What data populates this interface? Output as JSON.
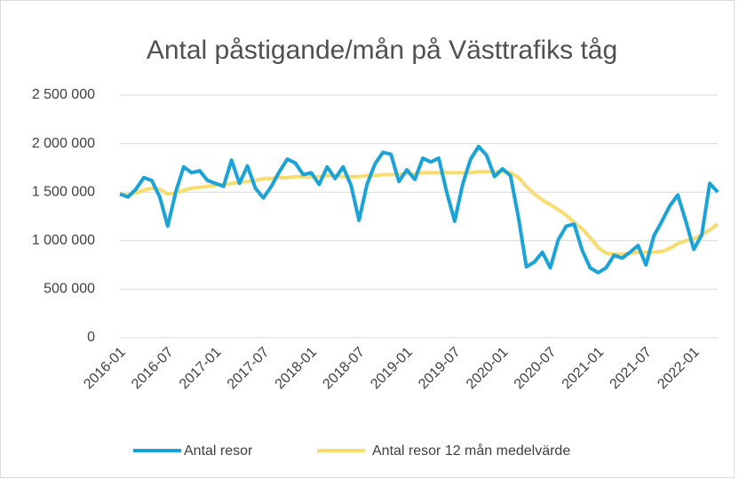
{
  "chart_data": {
    "type": "line",
    "title": "Antal påstigande/mån på Västtrafiks tåg",
    "categories": [
      "2016-01",
      null,
      null,
      null,
      null,
      null,
      "2016-07",
      null,
      null,
      null,
      null,
      null,
      "2017-01",
      null,
      null,
      null,
      null,
      null,
      "2017-07",
      null,
      null,
      null,
      null,
      null,
      "2018-01",
      null,
      null,
      null,
      null,
      null,
      "2018-07",
      null,
      null,
      null,
      null,
      null,
      "2019-01",
      null,
      null,
      null,
      null,
      null,
      "2019-07",
      null,
      null,
      null,
      null,
      null,
      "2020-01",
      null,
      null,
      null,
      null,
      null,
      "2020-07",
      null,
      null,
      null,
      null,
      null,
      "2021-01",
      null,
      null,
      null,
      null,
      null,
      "2021-07",
      null,
      null,
      null,
      null,
      null,
      "2022-01",
      null,
      null,
      null
    ],
    "series": [
      {
        "name": "Antal resor",
        "color": "#1aa3d9",
        "values": [
          1480000,
          1450000,
          1530000,
          1650000,
          1620000,
          1450000,
          1150000,
          1500000,
          1760000,
          1700000,
          1720000,
          1620000,
          1590000,
          1560000,
          1830000,
          1590000,
          1770000,
          1540000,
          1440000,
          1560000,
          1710000,
          1840000,
          1800000,
          1680000,
          1700000,
          1580000,
          1760000,
          1640000,
          1760000,
          1570000,
          1210000,
          1580000,
          1790000,
          1910000,
          1890000,
          1610000,
          1730000,
          1630000,
          1850000,
          1810000,
          1850000,
          1500000,
          1200000,
          1580000,
          1840000,
          1970000,
          1880000,
          1660000,
          1740000,
          1670000,
          1240000,
          730000,
          780000,
          880000,
          720000,
          1010000,
          1150000,
          1170000,
          900000,
          720000,
          670000,
          720000,
          850000,
          820000,
          880000,
          950000,
          750000,
          1050000,
          1200000,
          1360000,
          1470000,
          1200000,
          910000,
          1060000,
          1590000,
          1500000
        ]
      },
      {
        "name": "Antal resor 12 mån medelvärde",
        "color": "#f7dc6f",
        "values": [
          1480000,
          1470000,
          1490000,
          1520000,
          1540000,
          1530000,
          1480000,
          1490000,
          1520000,
          1540000,
          1550000,
          1560000,
          1570000,
          1580000,
          1590000,
          1600000,
          1610000,
          1620000,
          1640000,
          1640000,
          1650000,
          1650000,
          1660000,
          1660000,
          1660000,
          1660000,
          1670000,
          1670000,
          1660000,
          1660000,
          1660000,
          1670000,
          1670000,
          1680000,
          1680000,
          1680000,
          1690000,
          1690000,
          1700000,
          1700000,
          1700000,
          1700000,
          1700000,
          1700000,
          1700000,
          1710000,
          1710000,
          1710000,
          1710000,
          1700000,
          1650000,
          1560000,
          1480000,
          1420000,
          1370000,
          1320000,
          1260000,
          1190000,
          1120000,
          1030000,
          930000,
          870000,
          860000,
          860000,
          870000,
          880000,
          880000,
          880000,
          890000,
          920000,
          970000,
          1000000,
          1020000,
          1060000,
          1110000,
          1170000
        ]
      }
    ],
    "ylim": [
      0,
      2500000
    ],
    "yticks": [
      0,
      {
        "value": 500000,
        "label": "500 000"
      },
      {
        "value": 1000000,
        "label": "1 000 000"
      },
      {
        "value": 1500000,
        "label": "1 500 000"
      },
      {
        "value": 2000000,
        "label": "2 000 000"
      },
      {
        "value": 2500000,
        "label": "2 500 000"
      }
    ],
    "grid": true,
    "legend": "bottom"
  }
}
